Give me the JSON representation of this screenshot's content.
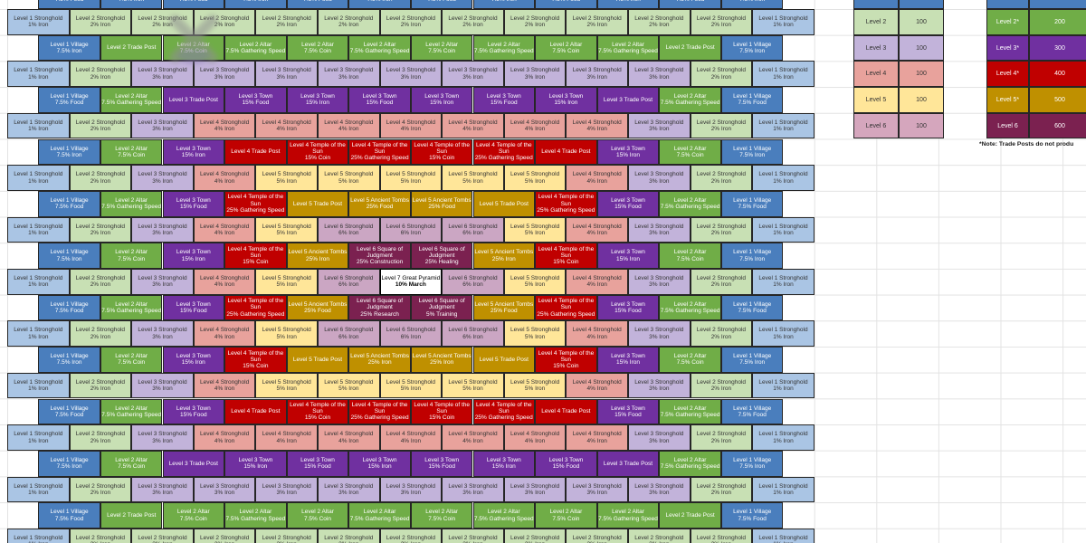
{
  "note": "*Note: Trade Posts do not produ",
  "building_types": {
    "v_f": {
      "slug": "level-1-village",
      "name": "Level 1 Village",
      "buff": "7.5% Food",
      "bg": "#4a7ebd",
      "fg": "#ffffff",
      "dark": true
    },
    "v_i": {
      "slug": "level-1-village",
      "name": "Level 1 Village",
      "buff": "7.5% Iron",
      "bg": "#4a7ebd",
      "fg": "#ffffff",
      "dark": true
    },
    "s1": {
      "slug": "level-1-stronghold",
      "name": "Level 1 Stronghold",
      "buff": "1% Iron",
      "bg": "#aac5e4",
      "fg": "#333333",
      "dark": false
    },
    "s2": {
      "slug": "level-2-stronghold",
      "name": "Level 2 Stronghold",
      "buff": "2% Iron",
      "bg": "#c8e0b4",
      "fg": "#333333",
      "dark": false
    },
    "s3": {
      "slug": "level-3-stronghold",
      "name": "Level 3 Stronghold",
      "buff": "3% Iron",
      "bg": "#c2b3da",
      "fg": "#333333",
      "dark": false
    },
    "s4": {
      "slug": "level-4-stronghold",
      "name": "Level 4 Stronghold",
      "buff": "4% Iron",
      "bg": "#e8a29c",
      "fg": "#333333",
      "dark": false
    },
    "s5": {
      "slug": "level-5-stronghold",
      "name": "Level 5 Stronghold",
      "buff": "5% Iron",
      "bg": "#ffe699",
      "fg": "#333333",
      "dark": false
    },
    "s6": {
      "slug": "level-6-stronghold",
      "name": "Level 6 Stronghold",
      "buff": "6% Iron",
      "bg": "#cba6c3",
      "fg": "#333333",
      "dark": false
    },
    "tp2": {
      "slug": "level-2-trade-post",
      "name": "Level 2 Trade Post",
      "buff": "",
      "bg": "#70ad47",
      "fg": "#ffffff",
      "dark": true
    },
    "a_c": {
      "slug": "level-2-altar",
      "name": "Level 2 Altar",
      "buff": "7.5% Coin",
      "bg": "#70ad47",
      "fg": "#ffffff",
      "dark": true
    },
    "a_g": {
      "slug": "level-2-altar",
      "name": "Level 2 Altar",
      "buff": "7.5% Gathering Speed",
      "bg": "#70ad47",
      "fg": "#ffffff",
      "dark": true
    },
    "tp3": {
      "slug": "level-3-trade-post",
      "name": "Level 3 Trade Post",
      "buff": "",
      "bg": "#7030a0",
      "fg": "#ffffff",
      "dark": true
    },
    "t_f": {
      "slug": "level-3-town",
      "name": "Level 3 Town",
      "buff": "15% Food",
      "bg": "#7030a0",
      "fg": "#ffffff",
      "dark": true
    },
    "t_i": {
      "slug": "level-3-town",
      "name": "Level 3 Town",
      "buff": "15% Iron",
      "bg": "#7030a0",
      "fg": "#ffffff",
      "dark": true
    },
    "tp4": {
      "slug": "level-4-trade-post",
      "name": "Level 4 Trade Post",
      "buff": "",
      "bg": "#c00000",
      "fg": "#ffffff",
      "dark": true
    },
    "te_c": {
      "slug": "level-4-temple-of-the-sun",
      "name": "Level 4 Temple of the Sun",
      "buff": "15% Coin",
      "bg": "#c00000",
      "fg": "#ffffff",
      "dark": true
    },
    "te_g": {
      "slug": "level-4-temple-of-the-sun",
      "name": "Level 4 Temple of the Sun",
      "buff": "25% Gathering Speed",
      "bg": "#c00000",
      "fg": "#ffffff",
      "dark": true
    },
    "tp5": {
      "slug": "level-5-trade-post",
      "name": "Level 5 Trade Post",
      "buff": "",
      "bg": "#bf9000",
      "fg": "#ffffff",
      "dark": true
    },
    "to_i": {
      "slug": "level-5-ancient-tombs",
      "name": "Level 5 Ancient Tombs",
      "buff": "25% Iron",
      "bg": "#bf9000",
      "fg": "#ffffff",
      "dark": true
    },
    "to_f": {
      "slug": "level-5-ancient-tombs",
      "name": "Level 5 Ancient Tombs",
      "buff": "25% Food",
      "bg": "#bf9000",
      "fg": "#ffffff",
      "dark": true
    },
    "sq_c": {
      "slug": "level-6-square-of-judgment",
      "name": "Level 6 Square of Judgment",
      "buff": "25% Construction",
      "bg": "#7b2150",
      "fg": "#ffffff",
      "dark": true
    },
    "sq_h": {
      "slug": "level-6-square-of-judgment",
      "name": "Level 6 Square of Judgment",
      "buff": "25% Healing",
      "bg": "#7b2150",
      "fg": "#ffffff",
      "dark": true
    },
    "sq_r": {
      "slug": "level-6-square-of-judgment",
      "name": "Level 6 Square of Judgment",
      "buff": "25% Research",
      "bg": "#7b2150",
      "fg": "#ffffff",
      "dark": true
    },
    "sq_t": {
      "slug": "level-6-square-of-judgment",
      "name": "Level 6 Square of Judgment",
      "buff": "5% Training",
      "bg": "#7b2150",
      "fg": "#ffffff",
      "dark": true
    },
    "pyr": {
      "slug": "level-7-great-pyramid",
      "name": "Level 7 Great Pyramid",
      "buff": "10% March",
      "bg": "#ffffff",
      "fg": "#000000",
      "dark": false
    }
  },
  "grid": {
    "rows": [
      {
        "offset": true,
        "cells": [
          "v_f",
          "v_i",
          "v_f",
          "v_i",
          "v_f",
          "v_i",
          "v_f",
          "v_i",
          "v_f",
          "v_i",
          "v_f",
          "v_i"
        ]
      },
      {
        "offset": false,
        "cells": [
          "s1",
          "s2",
          "s2",
          "s2",
          "s2",
          "s2",
          "s2",
          "s2",
          "s2",
          "s2",
          "s2",
          "s2",
          "s1"
        ]
      },
      {
        "offset": true,
        "cells": [
          "v_i",
          "tp2",
          "a_c",
          "a_g",
          "a_c",
          "a_g",
          "a_c",
          "a_g",
          "a_c",
          "a_g",
          "tp2",
          "v_i"
        ]
      },
      {
        "offset": false,
        "cells": [
          "s1",
          "s2",
          "s3",
          "s3",
          "s3",
          "s3",
          "s3",
          "s3",
          "s3",
          "s3",
          "s3",
          "s2",
          "s1"
        ]
      },
      {
        "offset": true,
        "cells": [
          "v_f",
          "a_g",
          "tp3",
          "t_f",
          "t_i",
          "t_f",
          "t_i",
          "t_f",
          "t_i",
          "tp3",
          "a_g",
          "v_f"
        ]
      },
      {
        "offset": false,
        "cells": [
          "s1",
          "s2",
          "s3",
          "s4",
          "s4",
          "s4",
          "s4",
          "s4",
          "s4",
          "s4",
          "s3",
          "s2",
          "s1"
        ]
      },
      {
        "offset": true,
        "cells": [
          "v_i",
          "a_c",
          "t_i",
          "tp4",
          "te_c",
          "te_g",
          "te_c",
          "te_g",
          "tp4",
          "t_i",
          "a_c",
          "v_i"
        ]
      },
      {
        "offset": false,
        "cells": [
          "s1",
          "s2",
          "s3",
          "s4",
          "s5",
          "s5",
          "s5",
          "s5",
          "s5",
          "s4",
          "s3",
          "s2",
          "s1"
        ]
      },
      {
        "offset": true,
        "cells": [
          "v_f",
          "a_g",
          "t_f",
          "te_g",
          "tp5",
          "to_f",
          "to_f",
          "tp5",
          "te_g",
          "t_f",
          "a_g",
          "v_f"
        ]
      },
      {
        "offset": false,
        "cells": [
          "s1",
          "s2",
          "s3",
          "s4",
          "s5",
          "s6",
          "s6",
          "s6",
          "s5",
          "s4",
          "s3",
          "s2",
          "s1"
        ]
      },
      {
        "offset": true,
        "cells": [
          "v_i",
          "a_c",
          "t_i",
          "te_c",
          "to_i",
          "sq_c",
          "sq_h",
          "to_i",
          "te_c",
          "t_i",
          "a_c",
          "v_i"
        ]
      },
      {
        "offset": false,
        "cells": [
          "s1",
          "s2",
          "s3",
          "s4",
          "s5",
          "s6",
          "pyr",
          "s6",
          "s5",
          "s4",
          "s3",
          "s2",
          "s1"
        ]
      },
      {
        "offset": true,
        "cells": [
          "v_f",
          "a_g",
          "t_f",
          "te_g",
          "to_f",
          "sq_r",
          "sq_t",
          "to_f",
          "te_g",
          "t_f",
          "a_g",
          "v_f"
        ]
      },
      {
        "offset": false,
        "cells": [
          "s1",
          "s2",
          "s3",
          "s4",
          "s5",
          "s6",
          "s6",
          "s6",
          "s5",
          "s4",
          "s3",
          "s2",
          "s1"
        ]
      },
      {
        "offset": true,
        "cells": [
          "v_i",
          "a_c",
          "t_i",
          "te_c",
          "tp5",
          "to_i",
          "to_i",
          "tp5",
          "te_c",
          "t_i",
          "a_c",
          "v_i"
        ]
      },
      {
        "offset": false,
        "cells": [
          "s1",
          "s2",
          "s3",
          "s4",
          "s5",
          "s5",
          "s5",
          "s5",
          "s5",
          "s4",
          "s3",
          "s2",
          "s1"
        ]
      },
      {
        "offset": true,
        "cells": [
          "v_f",
          "a_g",
          "t_f",
          "tp4",
          "te_c",
          "te_g",
          "te_c",
          "te_g",
          "tp4",
          "t_f",
          "a_g",
          "v_f"
        ]
      },
      {
        "offset": false,
        "cells": [
          "s1",
          "s2",
          "s3",
          "s4",
          "s4",
          "s4",
          "s4",
          "s4",
          "s4",
          "s4",
          "s3",
          "s2",
          "s1"
        ]
      },
      {
        "offset": true,
        "cells": [
          "v_i",
          "a_c",
          "tp3",
          "t_i",
          "t_f",
          "t_i",
          "t_f",
          "t_i",
          "t_f",
          "tp3",
          "a_g",
          "v_i"
        ]
      },
      {
        "offset": false,
        "cells": [
          "s1",
          "s2",
          "s3",
          "s3",
          "s3",
          "s3",
          "s3",
          "s3",
          "s3",
          "s3",
          "s3",
          "s2",
          "s1"
        ]
      },
      {
        "offset": true,
        "cells": [
          "v_f",
          "tp2",
          "a_c",
          "a_g",
          "a_c",
          "a_g",
          "a_c",
          "a_g",
          "a_c",
          "a_g",
          "tp2",
          "v_f"
        ]
      },
      {
        "offset": false,
        "cells": [
          "s1",
          "s2",
          "s2",
          "s2",
          "s2",
          "s2",
          "s2",
          "s2",
          "s2",
          "s2",
          "s2",
          "s2",
          "s1"
        ]
      }
    ]
  },
  "legend_basic": {
    "rows": [
      {
        "label": "",
        "value": "",
        "bg": "#4a7ebd",
        "fg": "#ffffff"
      },
      {
        "label": "Level 2",
        "value": "100",
        "bg": "#c8e0b4",
        "fg": "#333333"
      },
      {
        "label": "Level 3",
        "value": "100",
        "bg": "#c2b3da",
        "fg": "#333333"
      },
      {
        "label": "Level 4",
        "value": "100",
        "bg": "#e8a29c",
        "fg": "#333333"
      },
      {
        "label": "Level 5",
        "value": "100",
        "bg": "#ffe699",
        "fg": "#333333"
      },
      {
        "label": "Level 6",
        "value": "100",
        "bg": "#d5a6bd",
        "fg": "#333333"
      }
    ]
  },
  "legend_special": {
    "rows": [
      {
        "label": "",
        "value": "",
        "bg": "#4a7ebd",
        "fg": "#ffffff"
      },
      {
        "label": "Level 2*",
        "value": "200",
        "bg": "#70ad47",
        "fg": "#ffffff"
      },
      {
        "label": "Level 3*",
        "value": "300",
        "bg": "#7030a0",
        "fg": "#ffffff"
      },
      {
        "label": "Level 4*",
        "value": "400",
        "bg": "#c00000",
        "fg": "#ffffff"
      },
      {
        "label": "Level 5*",
        "value": "500",
        "bg": "#bf9000",
        "fg": "#ffffff"
      },
      {
        "label": "Level 6",
        "value": "600",
        "bg": "#7b2150",
        "fg": "#ffffff"
      }
    ]
  }
}
